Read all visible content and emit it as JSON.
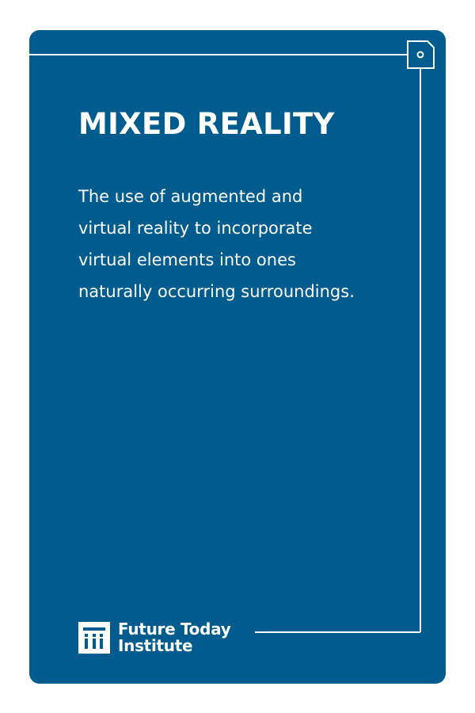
{
  "card": {
    "title": "MIXED REALITY",
    "definition_lines": [
      "The use of augmented and",
      "virtual reality to incorporate",
      "virtual elements into ones",
      "naturally occurring surroundings."
    ]
  },
  "brand": {
    "name_line_1": "Future Today",
    "name_line_2": "Institute",
    "logo_icon": "fti-logo-icon"
  },
  "colors": {
    "card_background": "#005b8e",
    "page_background": "#ffffff",
    "text": "#ffffff",
    "line": "#ffffff"
  },
  "decor": {
    "corner_icon": "circuit-node-icon"
  }
}
